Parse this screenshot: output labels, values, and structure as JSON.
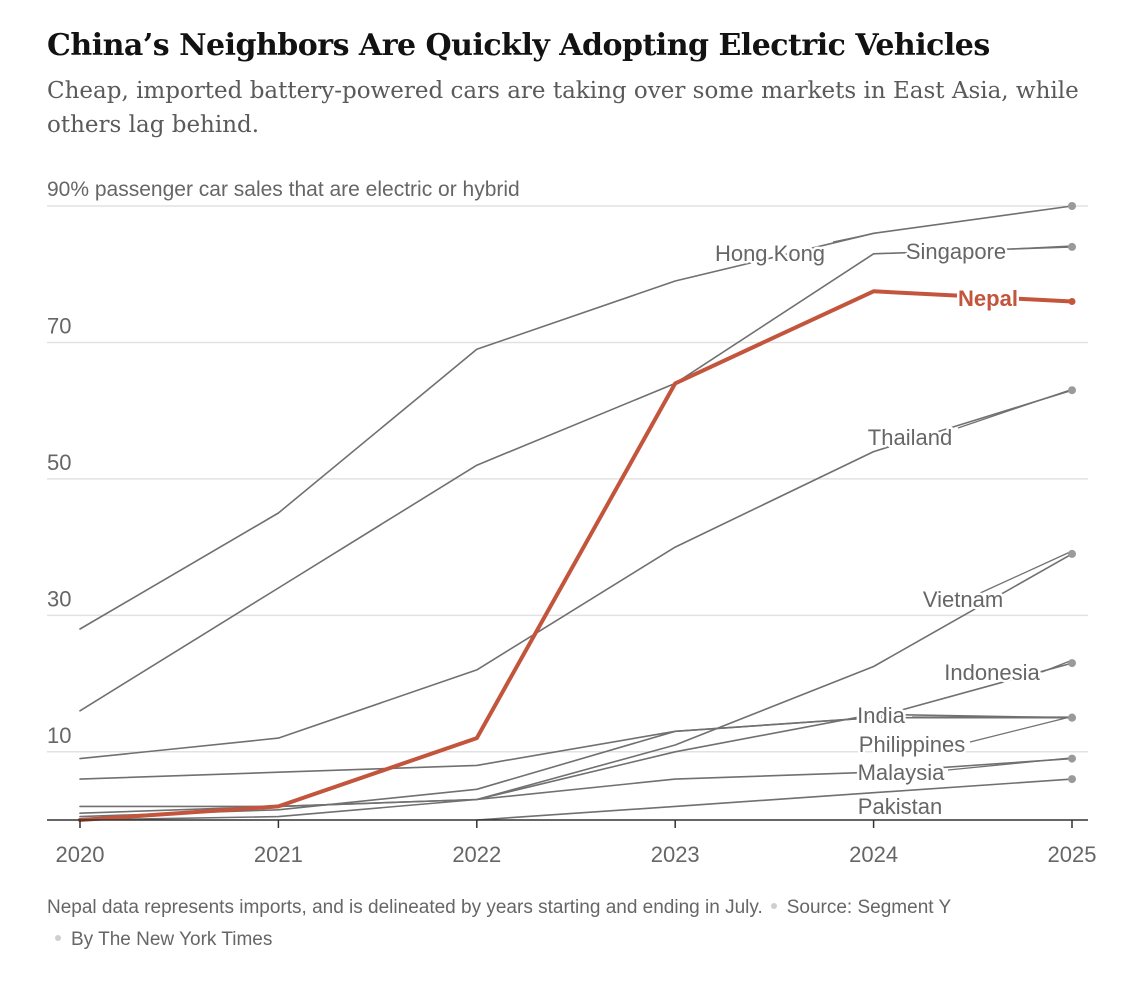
{
  "header": {
    "title": "China’s Neighbors Are Quickly Adopting Electric Vehicles",
    "subtitle": "Cheap, imported battery-powered cars are taking over some markets in East Asia, while others lag behind."
  },
  "footer": {
    "note": "Nepal data represents imports, and is delineated by years starting and ending in July.",
    "source": "Source: Segment Y",
    "byline": "By The New York Times"
  },
  "colors": {
    "highlight": "#c2553c",
    "line": "#707070",
    "grid": "#e2e2e2",
    "axis": "#333333"
  },
  "chart_data": {
    "type": "line",
    "title": "China’s Neighbors Are Quickly Adopting Electric Vehicles",
    "ylabel": "passenger car sales that are electric or hybrid",
    "ylabel_unit": "%",
    "x": [
      2020,
      2021,
      2022,
      2023,
      2024,
      2025
    ],
    "ylim": [
      0,
      90
    ],
    "yticks": [
      10,
      30,
      50,
      70,
      90
    ],
    "ytick_labels": [
      "10",
      "30",
      "50",
      "70",
      "90%"
    ],
    "grid": true,
    "series": [
      {
        "name": "Hong Kong",
        "values": [
          28,
          45,
          69,
          79,
          86,
          90
        ],
        "highlight": false
      },
      {
        "name": "Singapore",
        "values": [
          16,
          34,
          52,
          64,
          83,
          84
        ],
        "highlight": false
      },
      {
        "name": "Thailand",
        "values": [
          9,
          12,
          22,
          40,
          54,
          63
        ],
        "highlight": false
      },
      {
        "name": "Vietnam",
        "values": [
          0,
          0.5,
          3,
          11,
          22.5,
          39
        ],
        "highlight": false
      },
      {
        "name": "Indonesia",
        "values": [
          0.5,
          1.5,
          4.5,
          13,
          15,
          23
        ],
        "highlight": false
      },
      {
        "name": "India",
        "values": [
          6,
          7,
          8,
          13,
          15,
          15
        ],
        "highlight": false
      },
      {
        "name": "Philippines",
        "values": [
          1,
          2,
          3,
          10,
          15.5,
          15
        ],
        "highlight": false
      },
      {
        "name": "Malaysia",
        "values": [
          2,
          2,
          3,
          6,
          7,
          9
        ],
        "highlight": false
      },
      {
        "name": "Pakistan",
        "values": [
          null,
          null,
          0,
          2,
          4,
          6
        ],
        "highlight": false
      },
      {
        "name": "Nepal",
        "values": [
          0,
          2,
          12,
          64,
          77.5,
          76
        ],
        "highlight": true
      }
    ]
  }
}
